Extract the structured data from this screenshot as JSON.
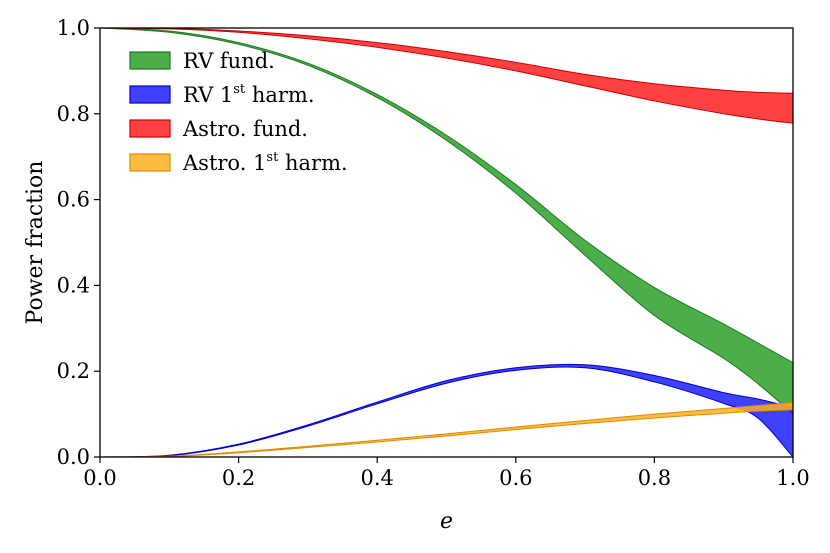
{
  "chart_data": {
    "type": "area",
    "xlabel": "e",
    "ylabel": "Power fraction",
    "xlim": [
      0.0,
      1.0
    ],
    "ylim": [
      0.0,
      1.0
    ],
    "xticks": [
      "0.0",
      "0.2",
      "0.4",
      "0.6",
      "0.8",
      "1.0"
    ],
    "yticks": [
      "0.0",
      "0.2",
      "0.4",
      "0.6",
      "0.8",
      "1.0"
    ],
    "grid": false,
    "legend_position": "top-left",
    "x": [
      0.0,
      0.1,
      0.2,
      0.3,
      0.4,
      0.5,
      0.6,
      0.7,
      0.8,
      0.9,
      0.95,
      1.0
    ],
    "series": [
      {
        "name": "RV fund.",
        "legend_main": "RV fund.",
        "legend_sup": "",
        "legend_tail": "",
        "color": "#2ca02c",
        "edge": "#1f7a1f",
        "upper": [
          1.0,
          0.993,
          0.966,
          0.918,
          0.845,
          0.75,
          0.635,
          0.505,
          0.395,
          0.31,
          0.265,
          0.22
        ],
        "lower": [
          1.0,
          0.99,
          0.962,
          0.913,
          0.838,
          0.738,
          0.615,
          0.47,
          0.33,
          0.23,
          0.17,
          0.1
        ]
      },
      {
        "name": "RV 1st harm.",
        "legend_main": "RV 1",
        "legend_sup": "st",
        "legend_tail": " harm.",
        "color": "#1f1fff",
        "edge": "#0000cc",
        "upper": [
          0.0,
          0.004,
          0.03,
          0.075,
          0.128,
          0.178,
          0.208,
          0.215,
          0.19,
          0.15,
          0.135,
          0.115
        ],
        "lower": [
          0.0,
          0.003,
          0.028,
          0.072,
          0.124,
          0.172,
          0.202,
          0.208,
          0.175,
          0.125,
          0.09,
          0.0
        ]
      },
      {
        "name": "Astro. fund.",
        "legend_main": "Astro. fund.",
        "legend_sup": "",
        "legend_tail": "",
        "color": "#ff2020",
        "edge": "#cc0000",
        "upper": [
          1.0,
          0.999,
          0.993,
          0.982,
          0.966,
          0.945,
          0.92,
          0.892,
          0.87,
          0.855,
          0.85,
          0.848
        ],
        "lower": [
          1.0,
          0.998,
          0.99,
          0.975,
          0.955,
          0.93,
          0.9,
          0.865,
          0.83,
          0.8,
          0.788,
          0.778
        ]
      },
      {
        "name": "Astro. 1st harm.",
        "legend_main": "Astro. 1",
        "legend_sup": "st",
        "legend_tail": " harm.",
        "color": "#ffb020",
        "edge": "#e08a00",
        "upper": [
          0.0,
          0.002,
          0.012,
          0.025,
          0.039,
          0.054,
          0.07,
          0.085,
          0.1,
          0.113,
          0.12,
          0.127
        ],
        "lower": [
          0.0,
          0.001,
          0.01,
          0.022,
          0.035,
          0.049,
          0.064,
          0.078,
          0.091,
          0.102,
          0.107,
          0.11
        ]
      }
    ]
  }
}
